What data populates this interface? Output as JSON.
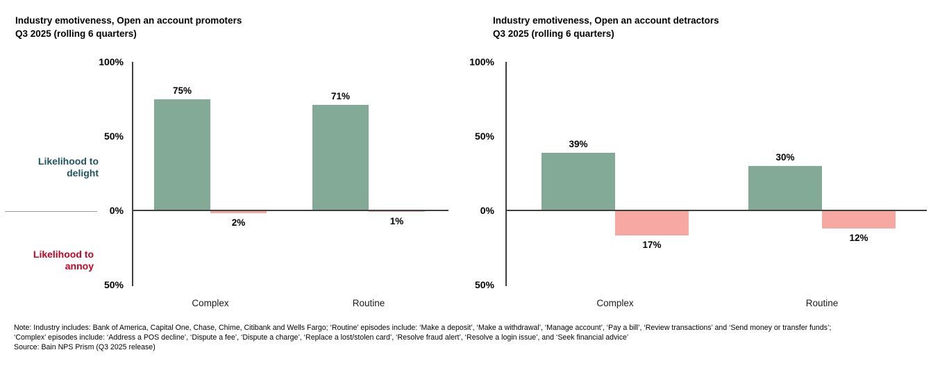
{
  "chart_data": [
    {
      "type": "bar",
      "title_line1": "Industry emotiveness, Open an account promoters",
      "title_line2": "Q3 2025 (rolling 6 quarters)",
      "categories": [
        "Complex",
        "Routine"
      ],
      "series": [
        {
          "name": "Likelihood to delight",
          "values": [
            75,
            71
          ],
          "labels": [
            "75%",
            "71%"
          ],
          "color": "#82aa96"
        },
        {
          "name": "Likelihood to annoy",
          "values": [
            2,
            1
          ],
          "labels": [
            "2%",
            "1%"
          ],
          "color": "#f8a8a2"
        }
      ],
      "yticks": [
        {
          "label": "100%",
          "value": 100
        },
        {
          "label": "50%",
          "value": 50
        },
        {
          "label": "0%",
          "value": 0
        },
        {
          "label": "50%",
          "value": -50
        }
      ],
      "ylim": [
        -50,
        100
      ],
      "grid": false,
      "legend": "none",
      "xlabel": "",
      "ylabel": ""
    },
    {
      "type": "bar",
      "title_line1": "Industry emotiveness, Open an account detractors",
      "title_line2": "Q3 2025 (rolling 6 quarters)",
      "categories": [
        "Complex",
        "Routine"
      ],
      "series": [
        {
          "name": "Likelihood to delight",
          "values": [
            39,
            30
          ],
          "labels": [
            "39%",
            "30%"
          ],
          "color": "#82aa96"
        },
        {
          "name": "Likelihood to annoy",
          "values": [
            17,
            12
          ],
          "labels": [
            "17%",
            "12%"
          ],
          "color": "#f8a8a2"
        }
      ],
      "yticks": [
        {
          "label": "100%",
          "value": 100
        },
        {
          "label": "50%",
          "value": 50
        },
        {
          "label": "0%",
          "value": 0
        },
        {
          "label": "50%",
          "value": -50
        }
      ],
      "ylim": [
        -50,
        100
      ],
      "grid": false,
      "legend": "none",
      "xlabel": "",
      "ylabel": ""
    }
  ],
  "side_labels": {
    "delight": [
      "Likelihood to",
      "delight"
    ],
    "annoy": [
      "Likelihood to",
      "annoy"
    ]
  },
  "footnote": {
    "note_line1": "Note: Industry includes: Bank of America, Capital One, Chase, Chime, Citibank and Wells Fargo; ‘Routine’ episodes include: ‘Make a deposit’, ‘Make a withdrawal’, ‘Manage account’, ‘Pay a bill’, ‘Review transactions’ and ‘Send money or transfer funds’;",
    "note_line2": "‘Complex’ episodes include: ‘Address a POS decline’, ‘Dispute a fee’, ‘Dispute a charge’, ‘Replace a lost/stolen card’, ‘Resolve fraud alert’, ‘Resolve a login issue’, and  ‘Seek financial advice’",
    "source": "Source: Bain NPS Prism (Q3 2025 release)"
  },
  "colors": {
    "delight_bar": "#82aa96",
    "annoy_bar": "#f8a8a2",
    "delight_text": "#1e5560",
    "annoy_text": "#cc0020",
    "axis": "#3f3f3f",
    "divider": "#9a9a9a"
  }
}
